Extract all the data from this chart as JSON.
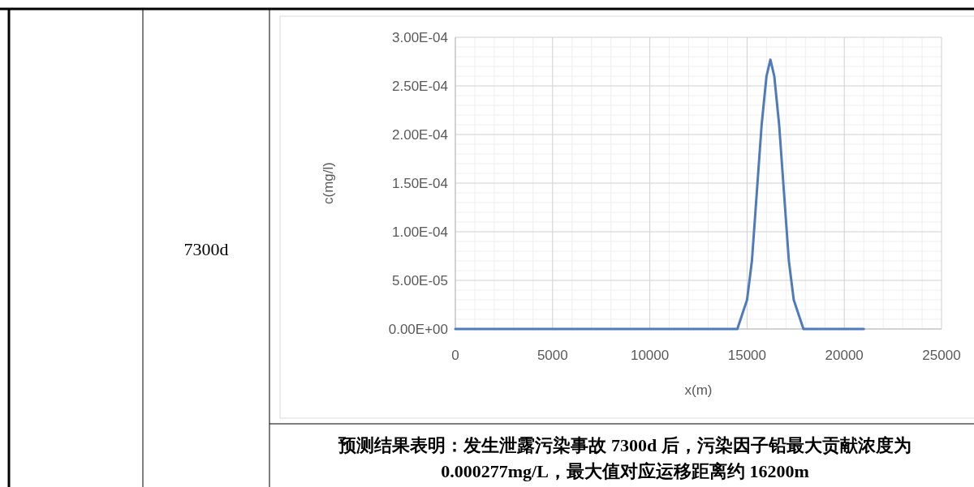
{
  "chart_data": {
    "type": "line",
    "xlabel": "x(m)",
    "ylabel": "c(mg/l)",
    "xlim": [
      0,
      25000
    ],
    "xticks": [
      0,
      5000,
      10000,
      15000,
      20000,
      25000
    ],
    "ylim": [
      0,
      0.0003
    ],
    "yticks": [
      {
        "value": 0,
        "label": "0.00E+00"
      },
      {
        "value": 5e-05,
        "label": "5.00E-05"
      },
      {
        "value": 0.0001,
        "label": "1.00E-04"
      },
      {
        "value": 0.00015,
        "label": "1.50E-04"
      },
      {
        "value": 0.0002,
        "label": "2.00E-04"
      },
      {
        "value": 0.00025,
        "label": "2.50E-04"
      },
      {
        "value": 0.0003,
        "label": "3.00E-04"
      }
    ],
    "grid": true,
    "marker": "none",
    "line_style": "solid",
    "series": [
      {
        "color": "#4f7bbd",
        "x": [
          0,
          14000,
          14500,
          15000,
          15250,
          15500,
          15750,
          16000,
          16200,
          16400,
          16650,
          16900,
          17150,
          17400,
          17900,
          18500,
          21000
        ],
        "values": [
          0,
          0,
          0,
          3e-05,
          7e-05,
          0.00014,
          0.00021,
          0.00026,
          0.000277,
          0.00026,
          0.00021,
          0.00014,
          7e-05,
          3e-05,
          0,
          0,
          0
        ]
      }
    ],
    "annotations": [
      "7300d",
      "预测结果表明：发生泄露污染事故 7300d 后，污染因子铅最大贡献浓度为 0.000277mg/L，最大值对应运移距离约 16200m"
    ]
  }
}
